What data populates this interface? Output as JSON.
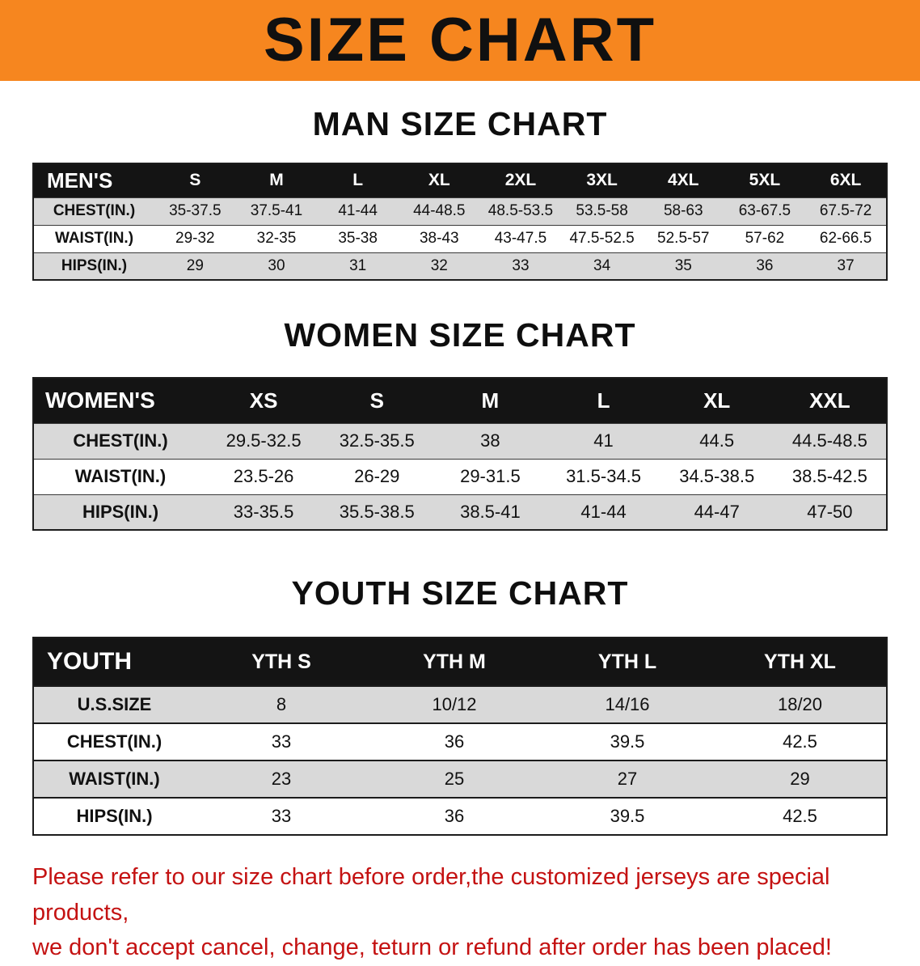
{
  "banner": {
    "title": "SIZE CHART"
  },
  "colors": {
    "banner_bg": "#f6861f",
    "header_bg": "#141414",
    "shade_bg": "#d9d9d9",
    "disclaimer_color": "#c41212"
  },
  "chart_data": [
    {
      "type": "table",
      "title": "MAN SIZE CHART",
      "header": [
        "MEN'S",
        "S",
        "M",
        "L",
        "XL",
        "2XL",
        "3XL",
        "4XL",
        "5XL",
        "6XL"
      ],
      "rows": [
        [
          "CHEST(IN.)",
          "35-37.5",
          "37.5-41",
          "41-44",
          "44-48.5",
          "48.5-53.5",
          "53.5-58",
          "58-63",
          "63-67.5",
          "67.5-72"
        ],
        [
          "WAIST(IN.)",
          "29-32",
          "32-35",
          "35-38",
          "38-43",
          "43-47.5",
          "47.5-52.5",
          "52.5-57",
          "57-62",
          "62-66.5"
        ],
        [
          "HIPS(IN.)",
          "29",
          "30",
          "31",
          "32",
          "33",
          "34",
          "35",
          "36",
          "37"
        ]
      ]
    },
    {
      "type": "table",
      "title": "WOMEN SIZE CHART",
      "header": [
        "WOMEN'S",
        "XS",
        "S",
        "M",
        "L",
        "XL",
        "XXL"
      ],
      "rows": [
        [
          "CHEST(IN.)",
          "29.5-32.5",
          "32.5-35.5",
          "38",
          "41",
          "44.5",
          "44.5-48.5"
        ],
        [
          "WAIST(IN.)",
          "23.5-26",
          "26-29",
          "29-31.5",
          "31.5-34.5",
          "34.5-38.5",
          "38.5-42.5"
        ],
        [
          "HIPS(IN.)",
          "33-35.5",
          "35.5-38.5",
          "38.5-41",
          "41-44",
          "44-47",
          "47-50"
        ]
      ]
    },
    {
      "type": "table",
      "title": "YOUTH SIZE CHART",
      "header": [
        "YOUTH",
        "YTH S",
        "YTH M",
        "YTH L",
        "YTH XL"
      ],
      "rows": [
        [
          "U.S.SIZE",
          "8",
          "10/12",
          "14/16",
          "18/20"
        ],
        [
          "CHEST(IN.)",
          "33",
          "36",
          "39.5",
          "42.5"
        ],
        [
          "WAIST(IN.)",
          "23",
          "25",
          "27",
          "29"
        ],
        [
          "HIPS(IN.)",
          "33",
          "36",
          "39.5",
          "42.5"
        ]
      ]
    }
  ],
  "footer": {
    "line1": "Please refer to our size chart before order,the customized jerseys are special products,",
    "line2": "we don't accept cancel, change, teturn or refund after order has been placed!"
  }
}
